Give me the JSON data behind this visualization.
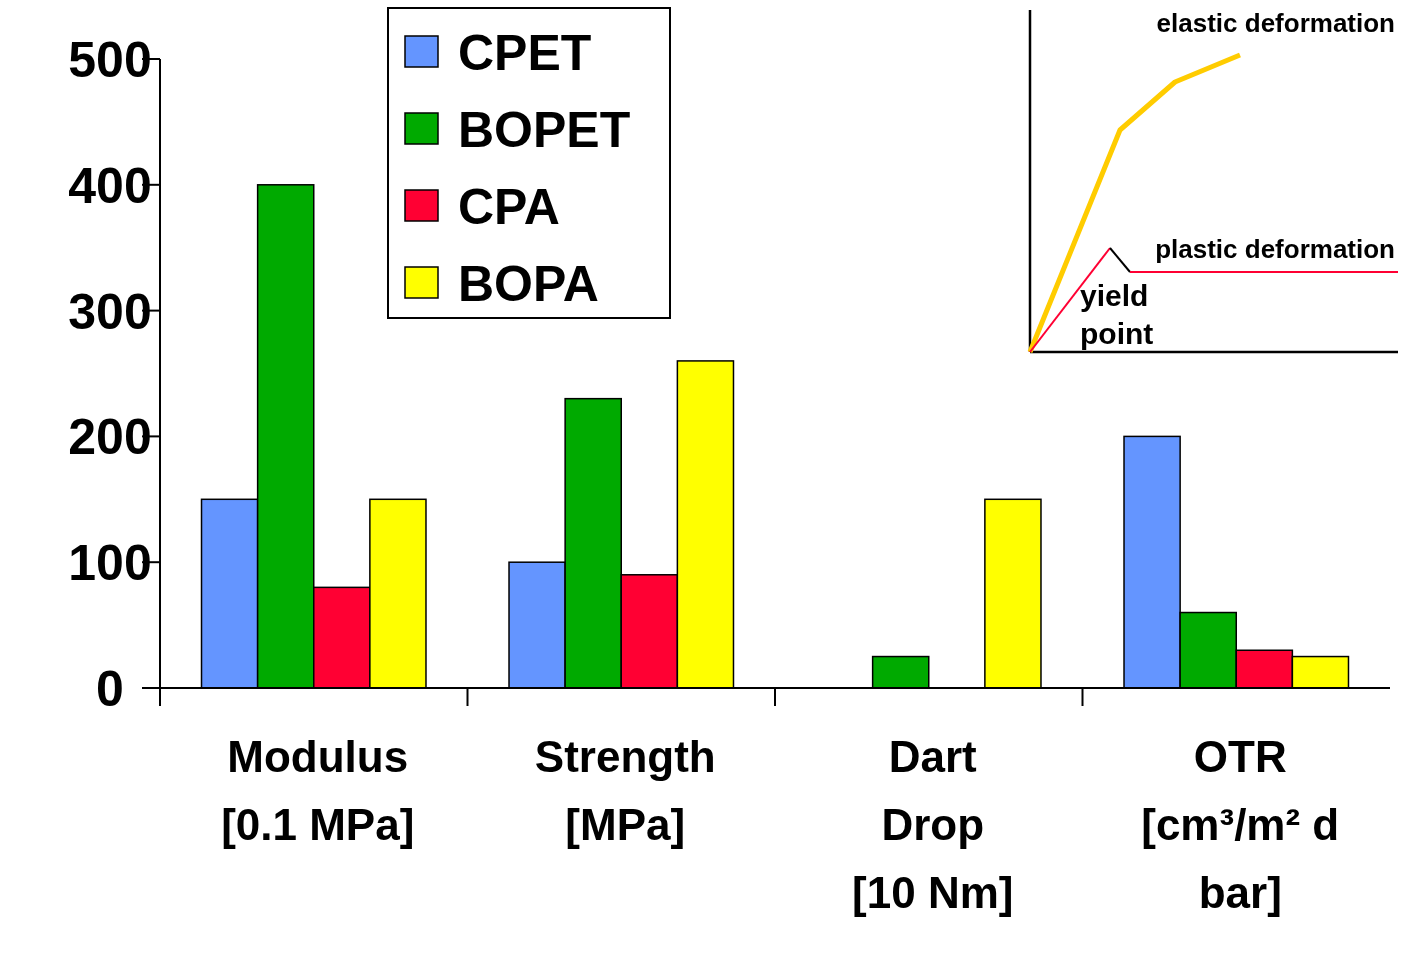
{
  "chart_data": {
    "type": "bar",
    "categories": [
      "Modulus\n[0.1 MPa]",
      "Strength\n[MPa]",
      "Dart\nDrop\n[10 Nm]",
      "OTR\n[cm³/m² d\nbar]"
    ],
    "series": [
      {
        "name": "CPET",
        "color": "#6495ff",
        "values": [
          150,
          100,
          null,
          200
        ]
      },
      {
        "name": "BOPET",
        "color": "#00aa00",
        "values": [
          400,
          230,
          25,
          60
        ]
      },
      {
        "name": "CPA",
        "color": "#ff0033",
        "values": [
          80,
          90,
          null,
          30
        ]
      },
      {
        "name": "BOPA",
        "color": "#ffff00",
        "values": [
          150,
          260,
          150,
          25
        ]
      }
    ],
    "ylim": [
      0,
      500
    ],
    "yticks": [
      0,
      100,
      200,
      300,
      400,
      500
    ],
    "grid": false,
    "legend": "top",
    "annotations": [
      "elastic deformation",
      "plastic deformation",
      "yield point"
    ]
  }
}
